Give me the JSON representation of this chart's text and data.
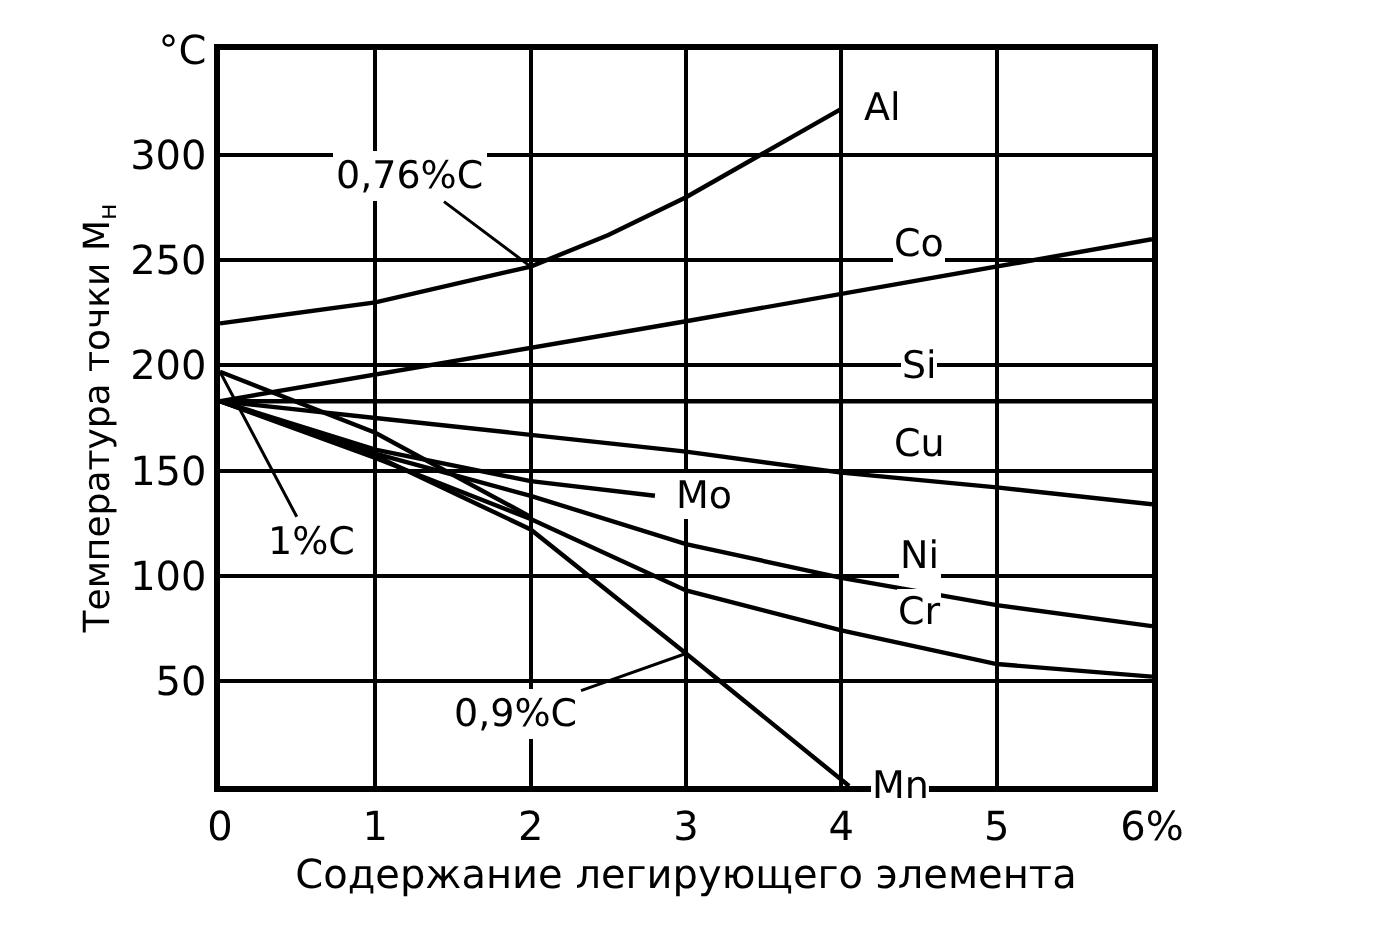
{
  "chart_data": {
    "type": "line",
    "xlabel": "Содержание легирующего элемента",
    "ylabel": "Температура точки M$_{н}$",
    "xlim": [
      0,
      6
    ],
    "xticks": [
      0,
      1,
      2,
      3,
      4,
      5,
      {
        "value": 6,
        "label": "6%"
      }
    ],
    "ylim": [
      0,
      350
    ],
    "yticks": [
      50,
      100,
      150,
      200,
      250,
      300,
      {
        "value": 350,
        "label": "°C"
      }
    ],
    "grid": true,
    "legend": false,
    "marker": "none",
    "line_style": "solid",
    "series": [
      {
        "name": "Al",
        "color": "#000000",
        "x": [
          0,
          1,
          2,
          2.5,
          3,
          4
        ],
        "values": [
          220,
          230,
          247,
          262,
          280,
          322
        ]
      },
      {
        "name": "Co",
        "color": "#000000",
        "x": [
          0,
          3,
          6
        ],
        "values": [
          183,
          221,
          260
        ]
      },
      {
        "name": "Si",
        "color": "#000000",
        "x": [
          0,
          6
        ],
        "values": [
          183,
          183
        ]
      },
      {
        "name": "Cu",
        "color": "#000000",
        "x": [
          0,
          1,
          2,
          3,
          4,
          5,
          6
        ],
        "values": [
          183,
          175,
          167,
          159,
          149,
          142,
          134
        ]
      },
      {
        "name": "Mo",
        "color": "#000000",
        "x": [
          0,
          1,
          2,
          2.8
        ],
        "values": [
          183,
          160,
          145,
          138
        ]
      },
      {
        "name": "Ni",
        "color": "#000000",
        "x": [
          0,
          1,
          2,
          3,
          4,
          5,
          6
        ],
        "values": [
          183,
          158,
          138,
          115,
          99,
          86,
          76
        ]
      },
      {
        "name": "Cr",
        "color": "#000000",
        "x": [
          0,
          1,
          2,
          3,
          4,
          5,
          6
        ],
        "values": [
          183,
          156,
          127,
          93,
          74,
          58,
          52
        ]
      },
      {
        "name": "Mn",
        "color": "#000000",
        "x": [
          0,
          1,
          2,
          3,
          4.05
        ],
        "values": [
          183,
          157,
          122,
          63,
          0
        ]
      },
      {
        "color": "#000000",
        "x": [
          0,
          1,
          2
        ],
        "values": [
          197,
          168,
          128
        ]
      }
    ],
    "annotations": [
      {
        "text": "0,76%C",
        "x": 2,
        "y": 247
      },
      {
        "text": "1%C",
        "x": 0,
        "y": 197
      },
      {
        "text": "0,9%C",
        "x": 3,
        "y": 63
      }
    ]
  }
}
